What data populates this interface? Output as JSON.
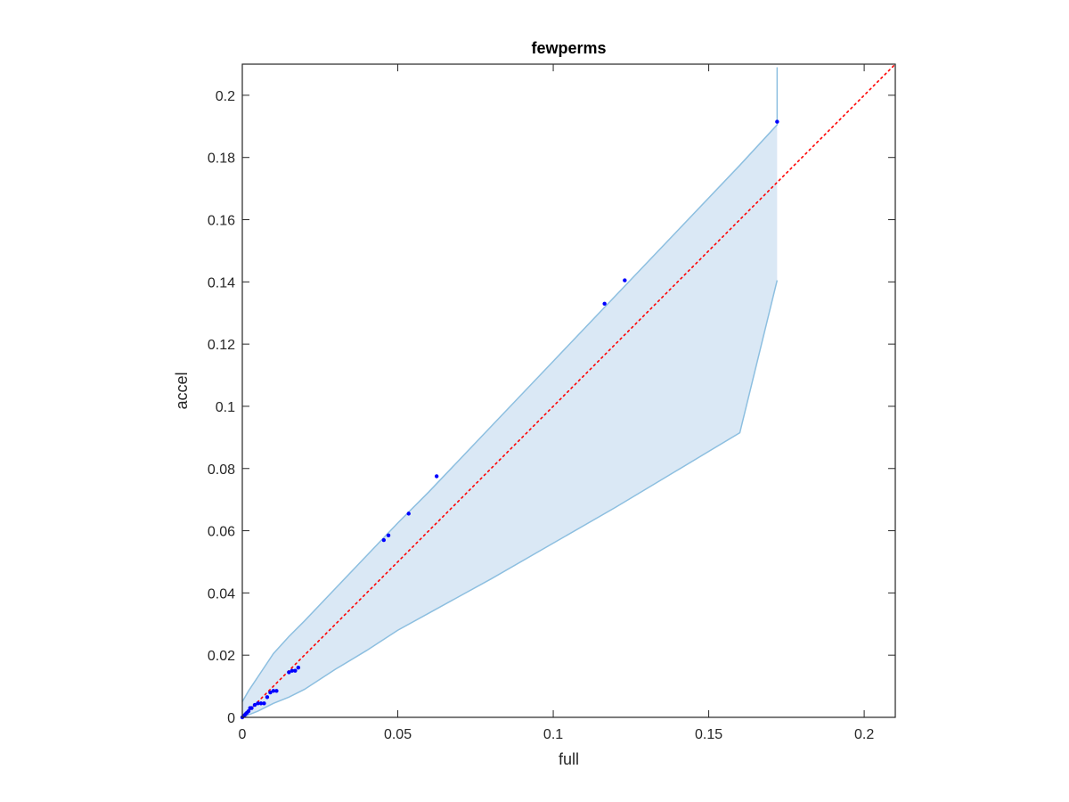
{
  "chart_data": {
    "type": "scatter",
    "title": "fewperms",
    "xlabel": "full",
    "ylabel": "accel",
    "xlim": [
      0,
      0.21
    ],
    "ylim": [
      0,
      0.21
    ],
    "xticks": [
      0,
      0.05,
      0.1,
      0.15,
      0.2
    ],
    "xtick_labels": [
      "0",
      "0.05",
      "0.1",
      "0.15",
      "0.2"
    ],
    "yticks": [
      0,
      0.02,
      0.04,
      0.06,
      0.08,
      0.1,
      0.12,
      0.14,
      0.16,
      0.18,
      0.2
    ],
    "ytick_labels": [
      "0",
      "0.02",
      "0.04",
      "0.06",
      "0.08",
      "0.1",
      "0.12",
      "0.14",
      "0.16",
      "0.18",
      "0.2"
    ],
    "grid": false,
    "points": {
      "color": "#0000ff",
      "x": [
        0.0,
        0.0005,
        0.001,
        0.0015,
        0.002,
        0.0025,
        0.003,
        0.004,
        0.005,
        0.006,
        0.007,
        0.008,
        0.009,
        0.01,
        0.011,
        0.015,
        0.016,
        0.017,
        0.018,
        0.0455,
        0.047,
        0.0535,
        0.0625,
        0.1165,
        0.123,
        0.172
      ],
      "y": [
        0.0,
        0.0005,
        0.001,
        0.0015,
        0.002,
        0.003,
        0.003,
        0.004,
        0.0045,
        0.0045,
        0.0045,
        0.0065,
        0.008,
        0.0085,
        0.0085,
        0.0145,
        0.015,
        0.015,
        0.016,
        0.057,
        0.0585,
        0.0655,
        0.0775,
        0.133,
        0.1405,
        0.1915
      ]
    },
    "band": {
      "fill_color": "#dae8f5",
      "edge_color": "#8dbfe0",
      "x": [
        0.0,
        0.002,
        0.005,
        0.01,
        0.015,
        0.02,
        0.03,
        0.04,
        0.05,
        0.06,
        0.08,
        0.1,
        0.12,
        0.14,
        0.16,
        0.172
      ],
      "upper": [
        0.005,
        0.0085,
        0.013,
        0.0205,
        0.026,
        0.031,
        0.0415,
        0.052,
        0.0625,
        0.0725,
        0.0935,
        0.1145,
        0.1355,
        0.1565,
        0.1775,
        0.1905
      ],
      "lower": [
        0.0,
        0.0008,
        0.002,
        0.0045,
        0.0065,
        0.009,
        0.0155,
        0.0215,
        0.028,
        0.0335,
        0.0445,
        0.056,
        0.0675,
        0.0795,
        0.0915,
        0.1405
      ],
      "right_edge_top": 0.209
    },
    "reference_line": {
      "color": "#ff0000",
      "style": "dotted",
      "x": [
        0,
        0.21
      ],
      "y": [
        0,
        0.21
      ]
    }
  }
}
